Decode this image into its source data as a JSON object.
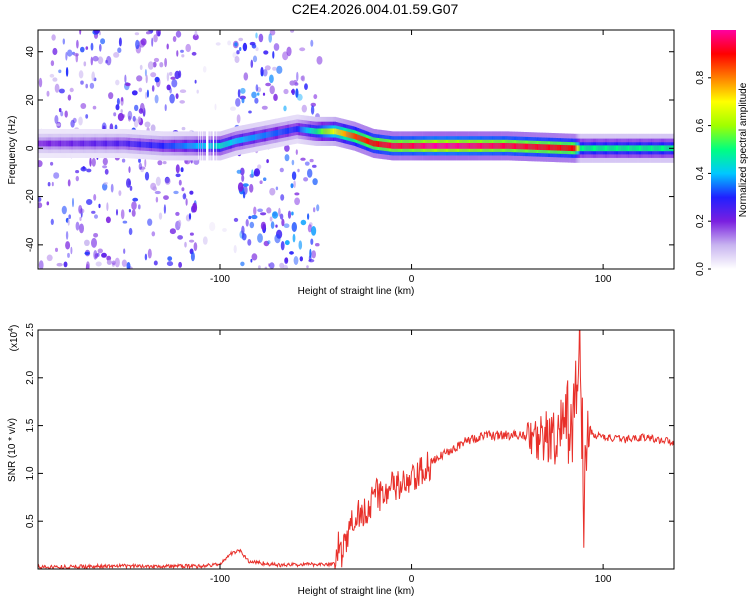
{
  "page_title": "C2E4.2026.004.01.59.G07",
  "chart_data": [
    {
      "type": "heatmap",
      "title": "C2E4.2026.004.01.59.G07",
      "xlabel": "Height of straight line (km)",
      "ylabel": "Frequency (Hz)",
      "xlim": [
        -195,
        137
      ],
      "ylim": [
        -50,
        49
      ],
      "xticks": [
        -100,
        0,
        100
      ],
      "xtick_labels": [
        "-100",
        "0",
        "100"
      ],
      "yticks": [
        -40,
        -20,
        0,
        20,
        40
      ],
      "ytick_labels": [
        "-40",
        "-20",
        "0",
        "20",
        "40"
      ],
      "colorbar": {
        "label": "Normalized spectral amplitude",
        "range": [
          0,
          1
        ],
        "ticks": [
          0.0,
          0.2,
          0.4,
          0.6,
          0.8
        ],
        "tick_labels": [
          "0.0",
          "0.2",
          "0.4",
          "0.6",
          "0.8"
        ],
        "colormap": [
          "#ffffff",
          "#c8b4f0",
          "#7a1fe0",
          "#2020ff",
          "#00c8ff",
          "#00ff80",
          "#a0ff00",
          "#ffff00",
          "#ff8000",
          "#ff0000",
          "#ff00a0"
        ]
      },
      "ridge": {
        "x": [
          -195,
          -150,
          -130,
          -100,
          -92,
          -60,
          -50,
          -40,
          -30,
          -20,
          -10,
          0,
          10,
          20,
          50,
          85,
          88,
          137
        ],
        "y": [
          2,
          2,
          1,
          1,
          3,
          8,
          7,
          7,
          5,
          2,
          1,
          1,
          1,
          1,
          1,
          0,
          0,
          0
        ],
        "amplitude": [
          0.2,
          0.25,
          0.3,
          0.45,
          0.4,
          0.3,
          0.5,
          0.7,
          0.85,
          0.9,
          0.95,
          0.95,
          1.0,
          1.0,
          0.95,
          0.9,
          0.5,
          0.5
        ]
      },
      "noise_regions": [
        {
          "x": [
            -195,
            -112
          ],
          "level": 0.28
        },
        {
          "x": [
            -112,
            -92
          ],
          "level": 0.05
        },
        {
          "x": [
            -92,
            -48
          ],
          "level": 0.32
        }
      ]
    },
    {
      "type": "line",
      "xlabel": "Height of straight line (km)",
      "ylabel": "SNR (10 * v/v)",
      "multiplier_label": "(x10",
      "multiplier_exponent": "4",
      "xlim": [
        -195,
        137
      ],
      "ylim": [
        0,
        2.5
      ],
      "xticks": [
        -100,
        0,
        100
      ],
      "xtick_labels": [
        "-100",
        "0",
        "100"
      ],
      "yticks": [
        0.5,
        1.0,
        1.5,
        2.0,
        2.5
      ],
      "ytick_labels": [
        "0.5",
        "1.0",
        "1.5",
        "2.0",
        "2.5"
      ],
      "color": "#e8302a",
      "series": [
        {
          "x": [
            -195,
            -150,
            -110,
            -100,
            -95,
            -90,
            -85,
            -70,
            -50,
            -40,
            -38,
            -36,
            -30,
            -25,
            -20,
            -10,
            0,
            5,
            10,
            20,
            30,
            40,
            50,
            60,
            65,
            70,
            75,
            80,
            85,
            88,
            90,
            92,
            95,
            110,
            120,
            137
          ],
          "y": [
            0.02,
            0.03,
            0.03,
            0.05,
            0.15,
            0.2,
            0.08,
            0.04,
            0.05,
            0.05,
            0.25,
            0.15,
            0.55,
            0.6,
            0.75,
            0.85,
            0.9,
            1.0,
            1.1,
            1.25,
            1.35,
            1.4,
            1.4,
            1.4,
            1.35,
            1.4,
            1.3,
            1.5,
            1.6,
            2.3,
            0.6,
            1.5,
            1.4,
            1.35,
            1.38,
            1.33
          ]
        }
      ]
    }
  ]
}
